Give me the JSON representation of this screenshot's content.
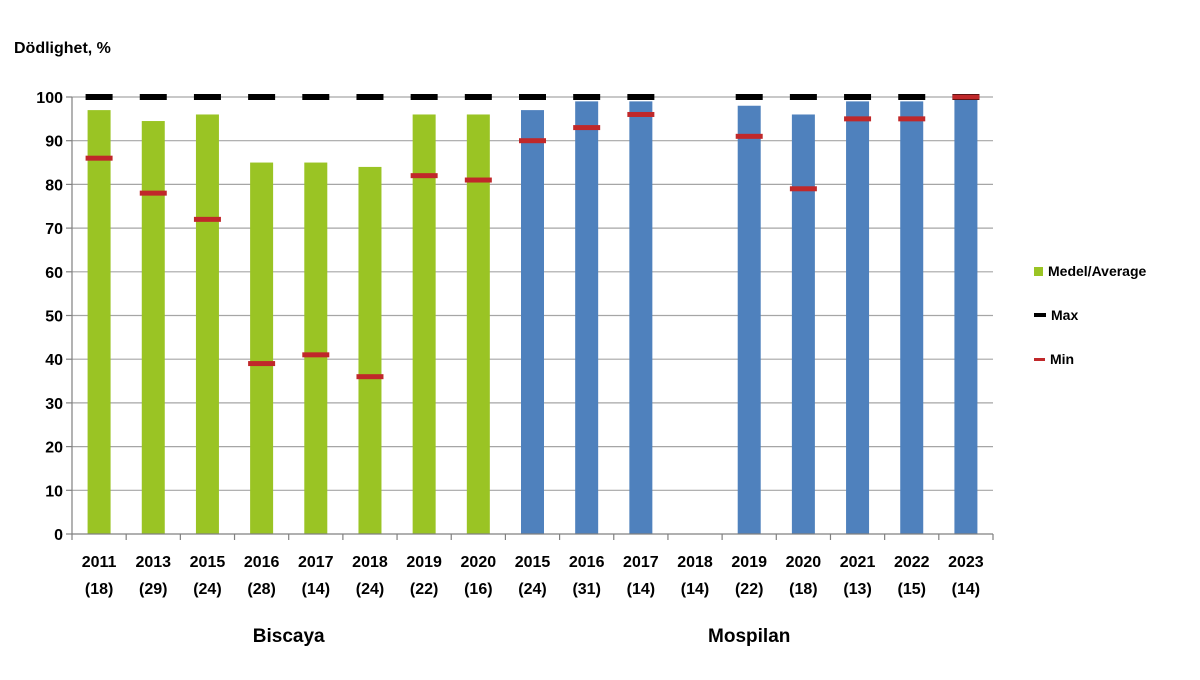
{
  "chart_data": {
    "type": "bar",
    "ylabel": "Dödlighet, %",
    "ylim": [
      0,
      100
    ],
    "yticks": [
      0,
      10,
      20,
      30,
      40,
      50,
      60,
      70,
      80,
      90,
      100
    ],
    "grid": true,
    "legend_position": "right",
    "legend": {
      "average": "Medel/Average",
      "max": "Max",
      "min": "Min"
    },
    "colors": {
      "biscaya": "#9ac424",
      "mospilan": "#4f81bd",
      "max": "#000000",
      "min": "#c0282a",
      "grid": "#a6a6a6",
      "axis": "#808080"
    },
    "groups": [
      {
        "name": "Biscaya",
        "color_key": "biscaya",
        "categories": [
          {
            "year": "2011",
            "n": "(18)",
            "average": 97,
            "max": 100,
            "min": 86
          },
          {
            "year": "2013",
            "n": "(29)",
            "average": 94.5,
            "max": 100,
            "min": 78
          },
          {
            "year": "2015",
            "n": "(24)",
            "average": 96,
            "max": 100,
            "min": 72
          },
          {
            "year": "2016",
            "n": "(28)",
            "average": 85,
            "max": 100,
            "min": 39
          },
          {
            "year": "2017",
            "n": "(14)",
            "average": 85,
            "max": 100,
            "min": 41
          },
          {
            "year": "2018",
            "n": "(24)",
            "average": 84,
            "max": 100,
            "min": 36
          },
          {
            "year": "2019",
            "n": "(22)",
            "average": 96,
            "max": 100,
            "min": 82
          },
          {
            "year": "2020",
            "n": "(16)",
            "average": 96,
            "max": 100,
            "min": 81
          }
        ]
      },
      {
        "name": "Mospilan",
        "color_key": "mospilan",
        "categories": [
          {
            "year": "2015",
            "n": "(24)",
            "average": 97,
            "max": 100,
            "min": 90
          },
          {
            "year": "2016",
            "n": "(31)",
            "average": 99,
            "max": 100,
            "min": 93
          },
          {
            "year": "2017",
            "n": "(14)",
            "average": 99,
            "max": 100,
            "min": 96
          },
          {
            "year": "2018",
            "n": "(14)",
            "average": null,
            "max": null,
            "min": null
          },
          {
            "year": "2019",
            "n": "(22)",
            "average": 98,
            "max": 100,
            "min": 91
          },
          {
            "year": "2020",
            "n": "(18)",
            "average": 96,
            "max": 100,
            "min": 79
          },
          {
            "year": "2021",
            "n": "(13)",
            "average": 99,
            "max": 100,
            "min": 95
          },
          {
            "year": "2022",
            "n": "(15)",
            "average": 99,
            "max": 100,
            "min": 95
          },
          {
            "year": "2023",
            "n": "(14)",
            "average": 100,
            "max": 100,
            "min": 100
          }
        ]
      }
    ]
  }
}
